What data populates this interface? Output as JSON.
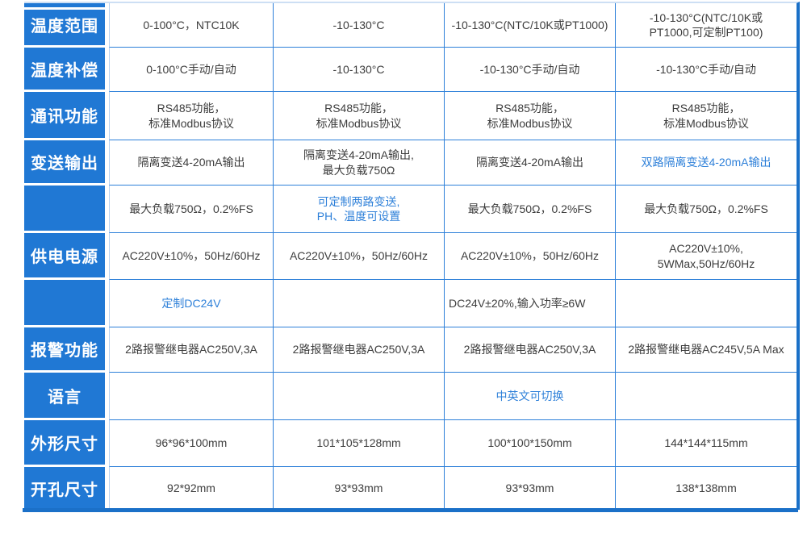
{
  "colors": {
    "header_bg": "#2078d4",
    "grid_line": "#2e80d9",
    "accent_text": "#2e80d9",
    "body_text": "#3d3d3d",
    "bottom_bar": "#1b70c8"
  },
  "spec_table": {
    "row_headers": [
      "温度范围",
      "温度补偿",
      "通讯功能",
      "变送输出",
      "",
      "供电电源",
      "",
      "报警功能",
      "语言",
      "外形尺寸",
      "开孔尺寸"
    ],
    "rows": [
      {
        "cells": [
          {
            "text": "0-100°C，NTC10K"
          },
          {
            "text": "-10-130°C"
          },
          {
            "text": "-10-130°C(NTC/10K或PT1000)"
          },
          {
            "text": "-10-130°C(NTC/10K或\nPT1000,可定制PT100)"
          }
        ]
      },
      {
        "cells": [
          {
            "text": "0-100°C手动/自动"
          },
          {
            "text": "-10-130°C"
          },
          {
            "text": "-10-130°C手动/自动"
          },
          {
            "text": "-10-130°C手动/自动"
          }
        ]
      },
      {
        "cells": [
          {
            "text": "RS485功能，\n标准Modbus协议"
          },
          {
            "text": "RS485功能，\n标准Modbus协议"
          },
          {
            "text": "RS485功能，\n标准Modbus协议"
          },
          {
            "text": "RS485功能，\n标准Modbus协议"
          }
        ]
      },
      {
        "cells": [
          {
            "text": "隔离变送4-20mA输出"
          },
          {
            "text": "隔离变送4-20mA输出,\n最大负载750Ω"
          },
          {
            "text": "隔离变送4-20mA输出"
          },
          {
            "text": "双路隔离变送4-20mA输出",
            "accent": true
          }
        ]
      },
      {
        "cells": [
          {
            "text": "最大负载750Ω，0.2%FS"
          },
          {
            "text": "可定制两路变送,\nPH、温度可设置",
            "accent": true
          },
          {
            "text": "最大负载750Ω，0.2%FS"
          },
          {
            "text": "最大负载750Ω，0.2%FS"
          }
        ]
      },
      {
        "cells": [
          {
            "text": "AC220V±10%，50Hz/60Hz"
          },
          {
            "text": "AC220V±10%，50Hz/60Hz"
          },
          {
            "text": "AC220V±10%，50Hz/60Hz"
          },
          {
            "text": "AC220V±10%,\n5WMax,50Hz/60Hz"
          }
        ]
      },
      {
        "cells": [
          {
            "text": "定制DC24V",
            "accent": true
          },
          {
            "text": ""
          },
          {
            "text": "DC24V±20%,输入功率≥6W",
            "align": "left"
          },
          {
            "text": ""
          }
        ]
      },
      {
        "cells": [
          {
            "text": "2路报警继电器AC250V,3A"
          },
          {
            "text": "2路报警继电器AC250V,3A"
          },
          {
            "text": "2路报警继电器AC250V,3A"
          },
          {
            "text": "2路报警继电器AC245V,5A Max"
          }
        ]
      },
      {
        "cells": [
          {
            "text": ""
          },
          {
            "text": ""
          },
          {
            "text": "中英文可切换",
            "accent": true
          },
          {
            "text": ""
          }
        ]
      },
      {
        "cells": [
          {
            "text": "96*96*100mm"
          },
          {
            "text": "101*105*128mm"
          },
          {
            "text": "100*100*150mm"
          },
          {
            "text": "144*144*115mm"
          }
        ]
      },
      {
        "cells": [
          {
            "text": "92*92mm"
          },
          {
            "text": "93*93mm"
          },
          {
            "text": "93*93mm"
          },
          {
            "text": "138*138mm"
          }
        ]
      }
    ]
  }
}
